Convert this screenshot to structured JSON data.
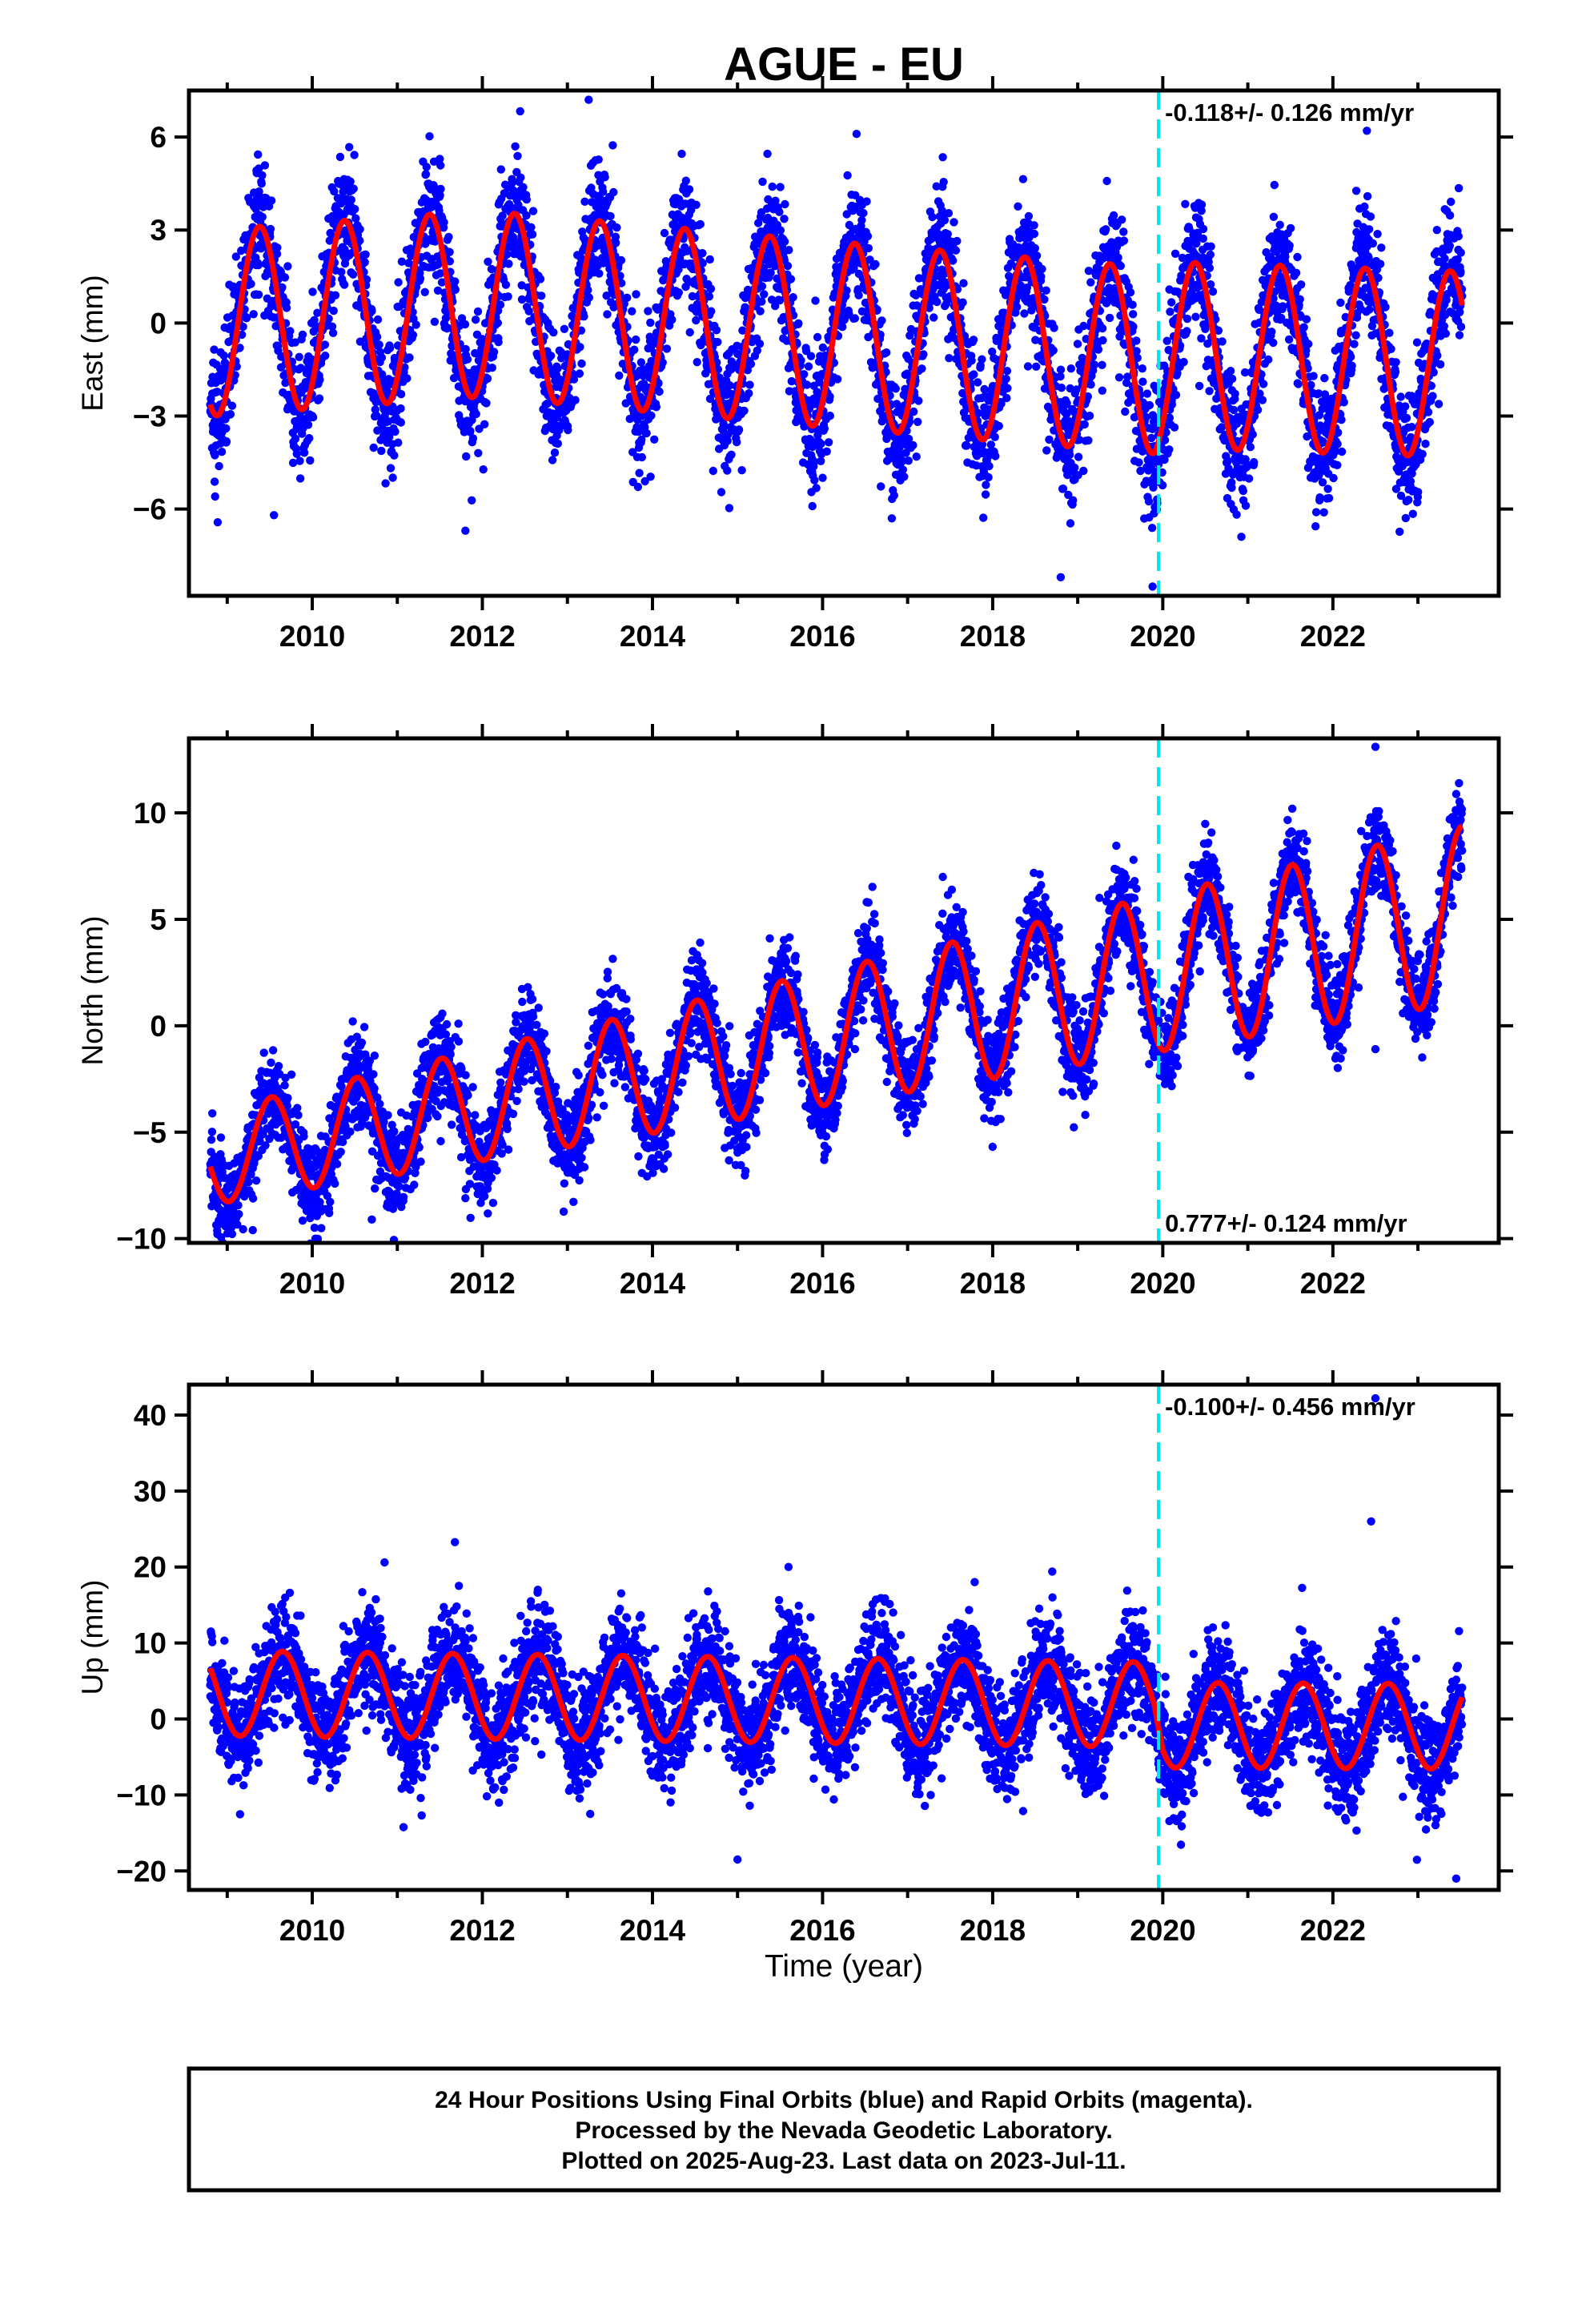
{
  "title": "AGUE - EU",
  "xlabel": "Time (year)",
  "colors": {
    "points": "#0000ff",
    "model": "#ff0000",
    "event_line": "#00e5ee",
    "frame": "#000000"
  },
  "chart_data": [
    {
      "type": "scatter",
      "ylabel": "East (mm)",
      "xlim": [
        2008.55,
        2023.95
      ],
      "ylim": [
        -8.8,
        7.5
      ],
      "yticks": [
        -6,
        -3,
        0,
        3,
        6
      ],
      "xticks": [
        2010,
        2012,
        2014,
        2016,
        2018,
        2020,
        2022
      ],
      "event_line_x": 2019.95,
      "rate_label": "-0.118+/- 0.126 mm/yr",
      "rate_position": "top-right",
      "model": {
        "trend": -0.118,
        "offset": 0.6,
        "annual_amp": 3.0,
        "amp_growth": 0.0,
        "phase_peak": 0.38,
        "baseline_curve": [
          [
            2008.8,
            -0.6
          ],
          [
            2012.0,
            0.4
          ],
          [
            2016.0,
            -0.1
          ],
          [
            2019.9,
            -0.5
          ],
          [
            2020.0,
            -0.3
          ],
          [
            2023.5,
            -0.2
          ]
        ]
      },
      "scatter_spread": 1.05,
      "outliers": [
        [
          2009.55,
          -6.2
        ],
        [
          2011.8,
          -6.7
        ],
        [
          2013.25,
          7.2
        ],
        [
          2018.8,
          -8.2
        ],
        [
          2019.88,
          -8.5
        ],
        [
          2022.4,
          6.2
        ],
        [
          2016.4,
          6.1
        ]
      ],
      "x_start": 2008.8,
      "x_end": 2023.52
    },
    {
      "type": "scatter",
      "ylabel": "North (mm)",
      "xlim": [
        2008.55,
        2023.95
      ],
      "ylim": [
        -10.2,
        13.5
      ],
      "yticks": [
        -10,
        -5,
        0,
        5,
        10
      ],
      "xticks": [
        2010,
        2012,
        2014,
        2016,
        2018,
        2020,
        2022
      ],
      "event_line_x": 2019.95,
      "rate_label": "0.777+/- 0.124 mm/yr",
      "rate_position": "bottom-right",
      "model": {
        "trend": 0.777,
        "offset": -6.2,
        "annual_amp": 2.2,
        "amp_growth": 0.06,
        "phase_peak": 0.52,
        "baseline_curve": []
      },
      "scatter_spread": 1.1,
      "outliers": [
        [
          2008.9,
          -9.3
        ],
        [
          2009.3,
          -9.6
        ],
        [
          2010.7,
          -9.1
        ],
        [
          2022.5,
          13.1
        ],
        [
          2022.5,
          -1.1
        ],
        [
          2011.8,
          -8.1
        ]
      ],
      "x_start": 2008.8,
      "x_end": 2023.52
    },
    {
      "type": "scatter",
      "ylabel": "Up (mm)",
      "xlim": [
        2008.55,
        2023.95
      ],
      "ylim": [
        -22.5,
        44.0
      ],
      "yticks": [
        -20,
        -10,
        0,
        10,
        20,
        30,
        40
      ],
      "xticks": [
        2010,
        2012,
        2014,
        2016,
        2018,
        2020,
        2022
      ],
      "event_line_x": 2019.95,
      "rate_label": "-0.100+/- 0.456 mm/yr",
      "rate_position": "top-right",
      "model": {
        "trend": -0.1,
        "offset": 1.8,
        "annual_amp": 5.6,
        "amp_growth": 0.0,
        "phase_peak": 0.65,
        "baseline_curve": [
          [
            2008.8,
            1.6
          ],
          [
            2019.9,
            1.2
          ],
          [
            2020.0,
            -1.5
          ],
          [
            2023.5,
            -1.3
          ]
        ]
      },
      "scatter_spread": 3.6,
      "outliers": [
        [
          2022.5,
          42.2
        ],
        [
          2022.45,
          26.0
        ],
        [
          2018.7,
          19.4
        ],
        [
          2010.85,
          20.6
        ],
        [
          2015.6,
          20.0
        ],
        [
          2023.45,
          -21.0
        ],
        [
          2015.0,
          -18.5
        ]
      ],
      "x_start": 2008.8,
      "x_end": 2023.52
    }
  ],
  "footer": {
    "line1": "24 Hour Positions Using Final Orbits (blue) and Rapid Orbits (magenta).",
    "line2": "Processed by the Nevada Geodetic Laboratory.",
    "line3": "Plotted on 2025-Aug-23. Last data on 2023-Jul-11."
  }
}
